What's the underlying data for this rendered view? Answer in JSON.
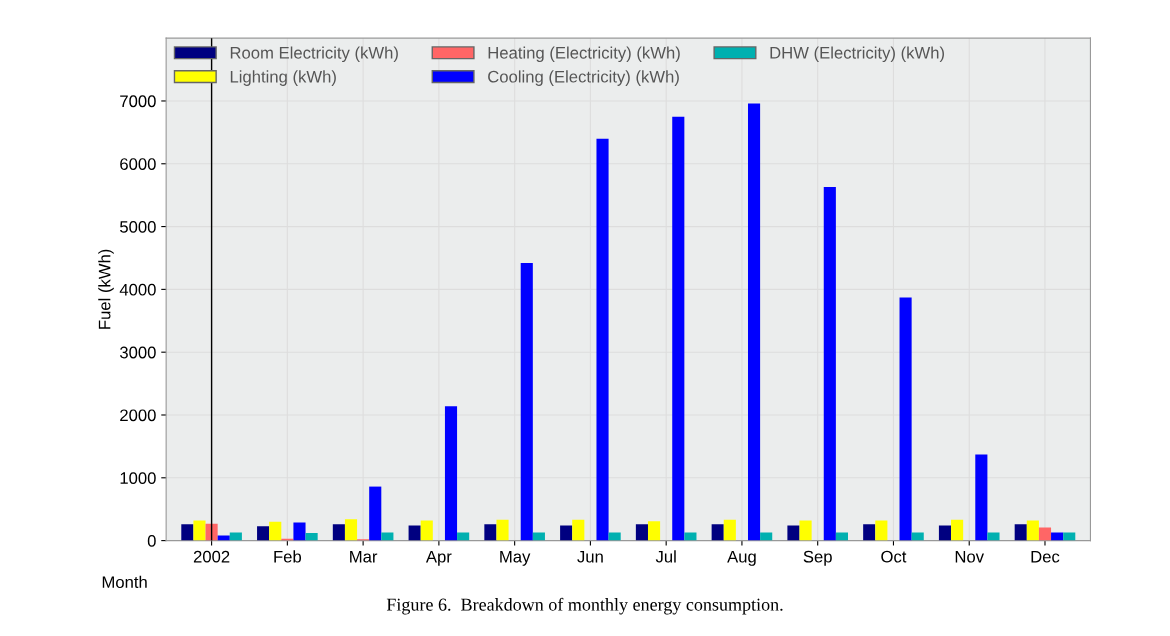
{
  "chart_data": {
    "type": "bar",
    "ylabel": "Fuel (kWh)",
    "xlabel": "Month",
    "categories": [
      "2002",
      "Feb",
      "Mar",
      "Apr",
      "May",
      "Jun",
      "Jul",
      "Aug",
      "Sep",
      "Oct",
      "Nov",
      "Dec"
    ],
    "series": [
      {
        "name": "Room Electricity (kWh)",
        "color": "#000080",
        "values": [
          260,
          230,
          260,
          240,
          260,
          240,
          260,
          260,
          240,
          260,
          240,
          260
        ]
      },
      {
        "name": "Lighting (kWh)",
        "color": "#ffff00",
        "values": [
          320,
          300,
          340,
          320,
          330,
          330,
          310,
          330,
          320,
          320,
          330,
          320
        ]
      },
      {
        "name": "Heating (Electricity) (kWh)",
        "color": "#ff6666",
        "values": [
          270,
          30,
          20,
          0,
          0,
          0,
          0,
          0,
          0,
          0,
          0,
          210
        ]
      },
      {
        "name": "Cooling (Electricity) (kWh)",
        "color": "#0000ff",
        "values": [
          80,
          290,
          860,
          2140,
          4420,
          6400,
          6750,
          6960,
          5630,
          3870,
          1370,
          130
        ]
      },
      {
        "name": "DHW (Electricity) (kWh)",
        "color": "#00b0b0",
        "values": [
          130,
          120,
          130,
          130,
          130,
          130,
          130,
          130,
          130,
          130,
          130,
          130
        ]
      }
    ],
    "ylim": [
      0,
      8000
    ],
    "yticks": [
      0,
      1000,
      2000,
      3000,
      4000,
      5000,
      6000,
      7000
    ],
    "grid": true,
    "legend": "top left",
    "ref_lines": [
      {
        "axis": "x",
        "value": "2002",
        "color": "#000000"
      }
    ],
    "annotations": [
      "Figure 6.  Breakdown of monthly energy consumption."
    ]
  }
}
